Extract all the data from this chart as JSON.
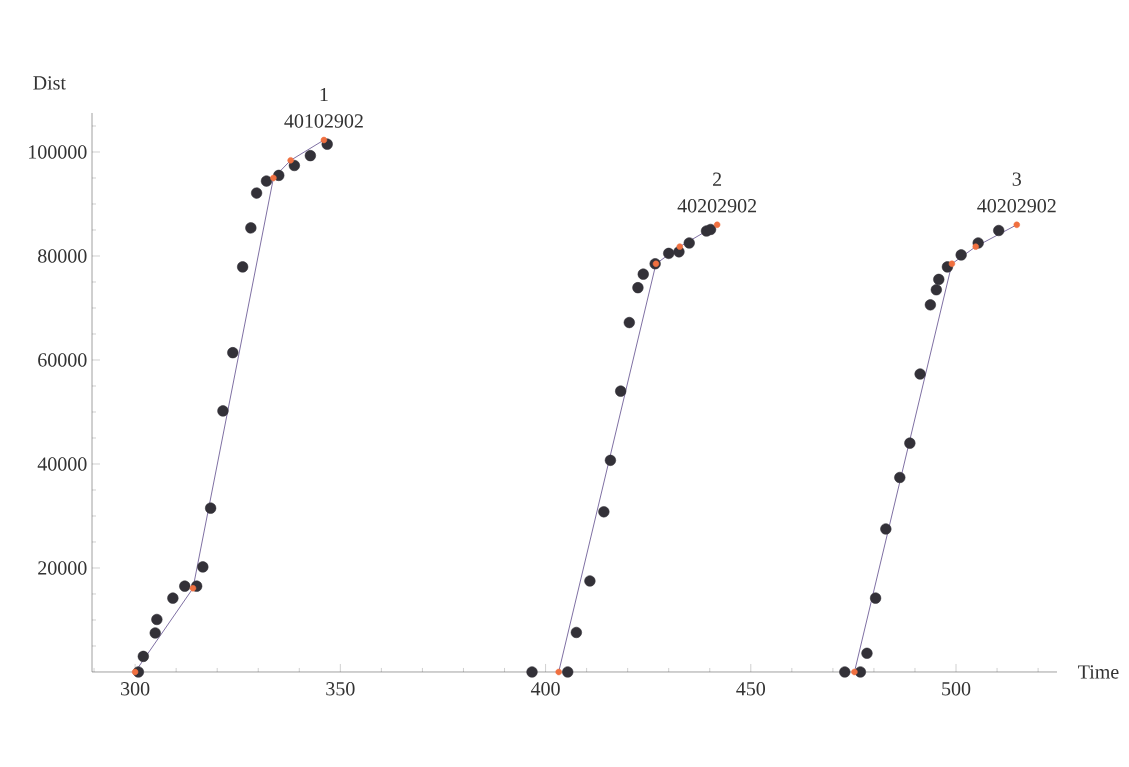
{
  "chart_data": {
    "type": "scatter",
    "xlabel": "Time",
    "ylabel": "Dist",
    "xlim": [
      289.5,
      524.6
    ],
    "ylim": [
      0,
      107500
    ],
    "xticks": [
      {
        "value": 290,
        "label": null
      },
      300,
      {
        "value": 310,
        "label": null
      },
      {
        "value": 320,
        "label": null
      },
      {
        "value": 330,
        "label": null
      },
      {
        "value": 340,
        "label": null
      },
      350,
      {
        "value": 360,
        "label": null
      },
      {
        "value": 370,
        "label": null
      },
      {
        "value": 380,
        "label": null
      },
      {
        "value": 390,
        "label": null
      },
      400,
      {
        "value": 410,
        "label": null
      },
      {
        "value": 420,
        "label": null
      },
      {
        "value": 430,
        "label": null
      },
      {
        "value": 440,
        "label": null
      },
      450,
      {
        "value": 460,
        "label": null
      },
      {
        "value": 470,
        "label": null
      },
      {
        "value": 480,
        "label": null
      },
      {
        "value": 490,
        "label": null
      },
      500,
      {
        "value": 510,
        "label": null
      },
      {
        "value": 520,
        "label": null
      }
    ],
    "yticks": [
      {
        "value": 5000,
        "label": null
      },
      {
        "value": 10000,
        "label": null
      },
      {
        "value": 15000,
        "label": null
      },
      20000,
      {
        "value": 25000,
        "label": null
      },
      {
        "value": 30000,
        "label": null
      },
      {
        "value": 35000,
        "label": null
      },
      40000,
      {
        "value": 45000,
        "label": null
      },
      {
        "value": 50000,
        "label": null
      },
      {
        "value": 55000,
        "label": null
      },
      60000,
      {
        "value": 65000,
        "label": null
      },
      {
        "value": 70000,
        "label": null
      },
      {
        "value": 75000,
        "label": null
      },
      80000,
      {
        "value": 85000,
        "label": null
      },
      {
        "value": 90000,
        "label": null
      },
      {
        "value": 95000,
        "label": null
      },
      100000,
      {
        "value": 105000,
        "label": null
      }
    ],
    "grid": false,
    "marker": "circle",
    "series": [
      {
        "color": "#333138",
        "x": [
          300.8,
          302,
          304.9,
          305.3,
          309.2,
          312.1,
          315,
          316.5,
          318.4,
          321.4,
          323.8,
          326.2,
          328.2,
          329.6,
          332,
          335,
          338.8,
          342.7,
          346.8
        ],
        "values": [
          0,
          3000,
          7500,
          10100,
          14200,
          16500,
          16500,
          20200,
          31500,
          50200,
          61400,
          77900,
          85400,
          92100,
          94400,
          95500,
          97400,
          99300,
          101500
        ]
      },
      {
        "type": "line",
        "color": "#5e4b8b",
        "marker": "none",
        "x": [
          300,
          314.1,
          333.7,
          337.9,
          346
        ],
        "values": [
          0,
          16100,
          95000,
          98400,
          102300
        ]
      },
      {
        "color": "#f07040",
        "x": [
          300,
          314.1,
          333.7,
          337.9,
          346
        ],
        "values": [
          0,
          16100,
          95000,
          98400,
          102300
        ]
      },
      {
        "color": "#333138",
        "x": [
          396.7,
          405.4,
          407.5,
          410.8,
          414.2,
          415.8,
          418.3,
          420.4,
          422.5,
          423.8,
          426.7,
          430,
          432.5,
          435,
          439.2,
          440.2
        ],
        "values": [
          0,
          0,
          7600,
          17500,
          30800,
          40700,
          54000,
          67200,
          73900,
          76500,
          78500,
          80500,
          80800,
          82500,
          84800,
          85100
        ]
      },
      {
        "type": "line",
        "color": "#5e4b8b",
        "marker": "none",
        "x": [
          403.2,
          426.9,
          432.7,
          441.8
        ],
        "values": [
          0,
          78500,
          81800,
          86000
        ]
      },
      {
        "color": "#f07040",
        "x": [
          403.2,
          426.9,
          432.7,
          441.8
        ],
        "values": [
          0,
          78500,
          81800,
          86000
        ]
      },
      {
        "color": "#333138",
        "x": [
          472.9,
          476.7,
          478.3,
          480.4,
          482.9,
          486.3,
          488.75,
          491.25,
          493.75,
          495.2,
          495.8,
          497.9,
          501.25,
          505.4,
          510.4
        ],
        "values": [
          0,
          0,
          3600,
          14200,
          27500,
          37400,
          44000,
          57300,
          70600,
          73500,
          75500,
          77900,
          80200,
          82500,
          84900
        ]
      },
      {
        "type": "line",
        "color": "#5e4b8b",
        "marker": "none",
        "x": [
          475.25,
          499,
          504.8,
          514.8
        ],
        "values": [
          0,
          78500,
          81800,
          86000
        ]
      },
      {
        "color": "#f07040",
        "x": [
          475.25,
          499,
          504.8,
          514.8
        ],
        "values": [
          0,
          78500,
          81800,
          86000
        ]
      }
    ],
    "annotations": [
      {
        "text": "1",
        "x": 346,
        "y": 102300
      },
      {
        "text": "40102902",
        "x": 346,
        "y": 102300
      },
      {
        "text": "2",
        "x": 441.8,
        "y": 86000
      },
      {
        "text": "40202902",
        "x": 441.8,
        "y": 86000
      },
      {
        "text": "3",
        "x": 514.8,
        "y": 86000
      },
      {
        "text": "40202902",
        "x": 514.8,
        "y": 86000
      }
    ]
  }
}
